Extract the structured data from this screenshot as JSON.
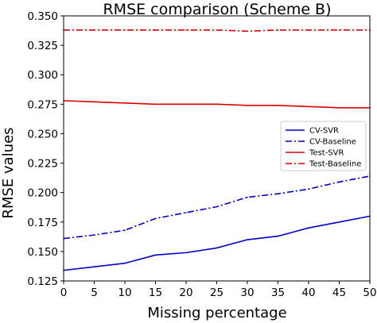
{
  "chart_data": {
    "type": "line",
    "title": "RMSE comparison (Scheme B)",
    "xlabel": "Missing percentage",
    "ylabel": "RMSE values",
    "x": [
      0,
      5,
      10,
      15,
      20,
      25,
      30,
      35,
      40,
      45,
      50
    ],
    "xlim": [
      0,
      50
    ],
    "ylim": [
      0.125,
      0.35
    ],
    "xticks": [
      0,
      5,
      10,
      15,
      20,
      25,
      30,
      35,
      40,
      45,
      50
    ],
    "yticks": [
      0.125,
      0.15,
      0.175,
      0.2,
      0.225,
      0.25,
      0.275,
      0.3,
      0.325,
      0.35
    ],
    "ytick_labels": [
      "0.125",
      "0.150",
      "0.175",
      "0.200",
      "0.225",
      "0.250",
      "0.275",
      "0.300",
      "0.325",
      "0.350"
    ],
    "grid": false,
    "legend_position": "center-right",
    "series": [
      {
        "name": "CV-SVR",
        "color": "#0000cc",
        "dash": "solid",
        "values": [
          0.134,
          0.137,
          0.14,
          0.147,
          0.149,
          0.153,
          0.16,
          0.163,
          0.17,
          0.175,
          0.18
        ]
      },
      {
        "name": "CV-Baseline",
        "color": "#0000cc",
        "dash": "dashdot",
        "values": [
          0.161,
          0.164,
          0.168,
          0.178,
          0.183,
          0.188,
          0.196,
          0.199,
          0.203,
          0.209,
          0.214
        ]
      },
      {
        "name": "Test-SVR",
        "color": "#dd0000",
        "dash": "solid",
        "values": [
          0.278,
          0.277,
          0.276,
          0.275,
          0.275,
          0.275,
          0.274,
          0.274,
          0.273,
          0.272,
          0.272
        ]
      },
      {
        "name": "Test-Baseline",
        "color": "#dd0000",
        "dash": "dashdot",
        "values": [
          0.338,
          0.338,
          0.338,
          0.338,
          0.338,
          0.338,
          0.337,
          0.338,
          0.338,
          0.338,
          0.338
        ]
      }
    ]
  }
}
